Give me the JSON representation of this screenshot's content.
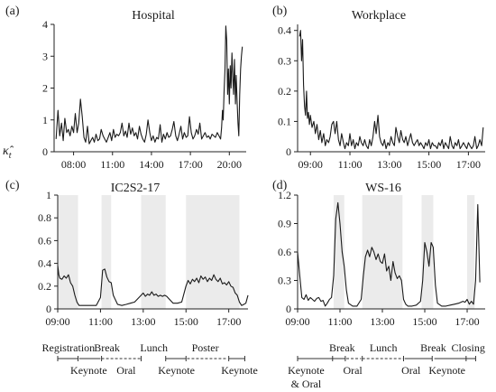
{
  "figure": {
    "ylabel": "κ̂",
    "ylabel_sub": "t"
  },
  "chart_data": [
    {
      "id": "a",
      "panel_label": "(a)",
      "title": "Hospital",
      "type": "line",
      "xlim": [
        6.5,
        21.3
      ],
      "ylim": [
        0,
        4
      ],
      "yticks": [
        0,
        1,
        2,
        3,
        4
      ],
      "xticks": [
        {
          "v": 8,
          "label": "08:00"
        },
        {
          "v": 11,
          "label": "11:00"
        },
        {
          "v": 14,
          "label": "14:00"
        },
        {
          "v": 17,
          "label": "17:00"
        },
        {
          "v": 20,
          "label": "20:00"
        }
      ],
      "shaded": [],
      "x": [
        6.65,
        6.8,
        6.93,
        7.07,
        7.2,
        7.33,
        7.47,
        7.6,
        7.73,
        7.87,
        8.0,
        8.13,
        8.27,
        8.4,
        8.53,
        8.67,
        8.8,
        8.93,
        9.07,
        9.2,
        9.33,
        9.47,
        9.6,
        9.73,
        9.87,
        10.0,
        10.13,
        10.27,
        10.4,
        10.53,
        10.67,
        10.8,
        10.93,
        11.07,
        11.2,
        11.33,
        11.47,
        11.6,
        11.73,
        11.87,
        12.0,
        12.13,
        12.27,
        12.4,
        12.53,
        12.67,
        12.8,
        12.93,
        13.07,
        13.2,
        13.33,
        13.47,
        13.6,
        13.73,
        13.87,
        14.0,
        14.13,
        14.27,
        14.4,
        14.53,
        14.67,
        14.8,
        14.93,
        15.07,
        15.2,
        15.33,
        15.47,
        15.6,
        15.73,
        15.87,
        16.0,
        16.13,
        16.27,
        16.4,
        16.53,
        16.67,
        16.8,
        16.93,
        17.07,
        17.2,
        17.33,
        17.47,
        17.6,
        17.73,
        17.87,
        18.0,
        18.13,
        18.27,
        18.4,
        18.53,
        18.67,
        18.8,
        18.93,
        19.07,
        19.2,
        19.33,
        19.4,
        19.47,
        19.53,
        19.6,
        19.67,
        19.73,
        19.8,
        19.87,
        19.93,
        20.0,
        20.07,
        20.13,
        20.2,
        20.27,
        20.33,
        20.4,
        20.47,
        20.53,
        20.6,
        20.67,
        20.73,
        20.8,
        20.87,
        20.93,
        21.0
      ],
      "y": [
        0.4,
        1.3,
        0.5,
        0.9,
        0.35,
        1.05,
        0.6,
        0.7,
        0.5,
        0.8,
        0.6,
        1.2,
        0.6,
        0.9,
        1.65,
        1.1,
        0.45,
        0.3,
        0.8,
        0.25,
        0.35,
        0.45,
        0.3,
        0.55,
        0.35,
        0.4,
        0.7,
        0.5,
        0.4,
        0.3,
        0.45,
        0.6,
        0.35,
        0.7,
        0.45,
        0.55,
        0.5,
        0.6,
        0.9,
        0.5,
        0.65,
        0.45,
        0.9,
        0.55,
        0.75,
        0.5,
        0.6,
        0.4,
        0.8,
        0.55,
        0.4,
        0.3,
        0.55,
        1.0,
        0.6,
        0.35,
        0.5,
        0.3,
        0.45,
        0.4,
        0.85,
        0.3,
        0.55,
        0.4,
        0.6,
        0.45,
        0.5,
        0.7,
        0.95,
        0.5,
        0.35,
        0.55,
        0.8,
        0.4,
        0.6,
        0.45,
        0.5,
        1.1,
        0.6,
        0.4,
        0.5,
        0.7,
        0.55,
        0.9,
        0.4,
        0.5,
        0.6,
        0.45,
        0.5,
        0.4,
        0.55,
        0.5,
        0.45,
        0.6,
        0.5,
        0.4,
        0.75,
        1.3,
        1.0,
        1.9,
        2.6,
        3.95,
        3.5,
        1.8,
        2.6,
        1.5,
        2.7,
        2.0,
        3.1,
        2.3,
        1.8,
        2.9,
        1.5,
        2.4,
        1.6,
        0.9,
        0.5,
        1.8,
        2.6,
        3.0,
        3.3
      ]
    },
    {
      "id": "b",
      "panel_label": "(b)",
      "title": "Workplace",
      "type": "line",
      "xlim": [
        8.35,
        17.85
      ],
      "ylim": [
        0,
        0.42
      ],
      "yticks": [
        0,
        0.1,
        0.2,
        0.3,
        0.4
      ],
      "xticks": [
        {
          "v": 9,
          "label": "09:00"
        },
        {
          "v": 11,
          "label": "11:00"
        },
        {
          "v": 13,
          "label": "13:00"
        },
        {
          "v": 15,
          "label": "15:00"
        },
        {
          "v": 17,
          "label": "17:00"
        }
      ],
      "shaded": [],
      "x": [
        8.45,
        8.5,
        8.55,
        8.6,
        8.65,
        8.7,
        8.75,
        8.8,
        8.85,
        8.9,
        8.95,
        9.0,
        9.08,
        9.17,
        9.25,
        9.33,
        9.42,
        9.5,
        9.58,
        9.67,
        9.75,
        9.83,
        9.92,
        10.0,
        10.08,
        10.17,
        10.25,
        10.33,
        10.42,
        10.5,
        10.58,
        10.67,
        10.75,
        10.83,
        10.92,
        11.0,
        11.08,
        11.17,
        11.25,
        11.33,
        11.42,
        11.5,
        11.58,
        11.67,
        11.75,
        11.83,
        11.92,
        12.0,
        12.08,
        12.17,
        12.25,
        12.33,
        12.42,
        12.5,
        12.58,
        12.67,
        12.75,
        12.83,
        12.92,
        13.0,
        13.08,
        13.17,
        13.25,
        13.33,
        13.42,
        13.5,
        13.58,
        13.67,
        13.75,
        13.83,
        13.92,
        14.0,
        14.08,
        14.17,
        14.25,
        14.33,
        14.42,
        14.5,
        14.58,
        14.67,
        14.75,
        14.83,
        14.92,
        15.0,
        15.08,
        15.17,
        15.25,
        15.33,
        15.42,
        15.5,
        15.58,
        15.67,
        15.75,
        15.83,
        15.92,
        16.0,
        16.08,
        16.17,
        16.25,
        16.33,
        16.42,
        16.5,
        16.58,
        16.67,
        16.75,
        16.83,
        16.92,
        17.0,
        17.08,
        17.17,
        17.25,
        17.33,
        17.42,
        17.5,
        17.58,
        17.67,
        17.75
      ],
      "y": [
        0.38,
        0.4,
        0.3,
        0.37,
        0.22,
        0.15,
        0.12,
        0.2,
        0.11,
        0.13,
        0.09,
        0.12,
        0.08,
        0.1,
        0.06,
        0.09,
        0.04,
        0.07,
        0.03,
        0.06,
        0.02,
        0.04,
        0.03,
        0.05,
        0.09,
        0.1,
        0.06,
        0.1,
        0.04,
        0.02,
        0.06,
        0.03,
        0.01,
        0.03,
        0.02,
        0.06,
        0.02,
        0.04,
        0.01,
        0.03,
        0.02,
        0.05,
        0.03,
        0.02,
        0.04,
        0.02,
        0.01,
        0.04,
        0.02,
        0.05,
        0.1,
        0.06,
        0.12,
        0.05,
        0.03,
        0.02,
        0.04,
        0.01,
        0.03,
        0.02,
        0.05,
        0.03,
        0.02,
        0.08,
        0.05,
        0.03,
        0.07,
        0.04,
        0.03,
        0.05,
        0.02,
        0.04,
        0.06,
        0.03,
        0.02,
        0.03,
        0.04,
        0.02,
        0.03,
        0.02,
        0.01,
        0.03,
        0.02,
        0.04,
        0.01,
        0.03,
        0.02,
        0.02,
        0.01,
        0.03,
        0.02,
        0.04,
        0.01,
        0.03,
        0.02,
        0.01,
        0.05,
        0.02,
        0.01,
        0.03,
        0.02,
        0.04,
        0.01,
        0.02,
        0.03,
        0.02,
        0.01,
        0.03,
        0.02,
        0.01,
        0.02,
        0.05,
        0.01,
        0.02,
        0.04,
        0.02,
        0.08
      ]
    },
    {
      "id": "c",
      "panel_label": "(c)",
      "title": "IC2S2-17",
      "type": "line",
      "xlim": [
        9.0,
        17.9
      ],
      "ylim": [
        0,
        1
      ],
      "yticks": [
        0,
        0.2,
        0.4,
        0.6,
        0.8,
        1.0
      ],
      "xticks": [
        {
          "v": 9,
          "label": "09:00"
        },
        {
          "v": 11,
          "label": "11:00"
        },
        {
          "v": 13,
          "label": "13:00"
        },
        {
          "v": 15,
          "label": "15:00"
        },
        {
          "v": 17,
          "label": "17:00"
        }
      ],
      "shaded": [
        [
          9.0,
          9.95
        ],
        [
          11.05,
          11.5
        ],
        [
          12.9,
          14.05
        ],
        [
          15.0,
          17.5
        ]
      ],
      "x": [
        9.0,
        9.05,
        9.1,
        9.2,
        9.3,
        9.4,
        9.5,
        9.6,
        9.7,
        9.8,
        9.9,
        10.0,
        10.2,
        10.4,
        10.6,
        10.8,
        11.0,
        11.1,
        11.2,
        11.3,
        11.4,
        11.5,
        11.6,
        11.8,
        12.0,
        12.2,
        12.4,
        12.6,
        12.8,
        12.9,
        13.0,
        13.1,
        13.2,
        13.3,
        13.4,
        13.5,
        13.6,
        13.7,
        13.8,
        13.9,
        14.0,
        14.1,
        14.2,
        14.4,
        14.6,
        14.8,
        15.0,
        15.1,
        15.2,
        15.3,
        15.4,
        15.5,
        15.6,
        15.7,
        15.8,
        15.9,
        16.0,
        16.1,
        16.2,
        16.3,
        16.4,
        16.5,
        16.6,
        16.7,
        16.8,
        16.9,
        17.0,
        17.1,
        17.2,
        17.3,
        17.4,
        17.5,
        17.6,
        17.7,
        17.8,
        17.9
      ],
      "y": [
        0.38,
        0.3,
        0.27,
        0.26,
        0.29,
        0.27,
        0.3,
        0.23,
        0.2,
        0.12,
        0.06,
        0.03,
        0.03,
        0.03,
        0.03,
        0.03,
        0.1,
        0.34,
        0.35,
        0.28,
        0.24,
        0.23,
        0.12,
        0.04,
        0.03,
        0.04,
        0.05,
        0.06,
        0.1,
        0.12,
        0.14,
        0.11,
        0.13,
        0.12,
        0.15,
        0.12,
        0.13,
        0.11,
        0.12,
        0.11,
        0.12,
        0.11,
        0.09,
        0.05,
        0.05,
        0.06,
        0.2,
        0.25,
        0.22,
        0.26,
        0.24,
        0.27,
        0.23,
        0.29,
        0.26,
        0.28,
        0.24,
        0.27,
        0.25,
        0.3,
        0.26,
        0.24,
        0.27,
        0.22,
        0.23,
        0.21,
        0.24,
        0.2,
        0.19,
        0.14,
        0.12,
        0.06,
        0.03,
        0.04,
        0.05,
        0.12
      ]
    },
    {
      "id": "d",
      "panel_label": "(d)",
      "title": "WS-16",
      "type": "line",
      "xlim": [
        9.0,
        17.85
      ],
      "ylim": [
        0,
        1.2
      ],
      "yticks": [
        0,
        0.3,
        0.6,
        0.9,
        1.2
      ],
      "xticks": [
        {
          "v": 9,
          "label": "09:00"
        },
        {
          "v": 11,
          "label": "11:00"
        },
        {
          "v": 13,
          "label": "13:00"
        },
        {
          "v": 15,
          "label": "15:00"
        },
        {
          "v": 17,
          "label": "17:00"
        }
      ],
      "shaded": [
        [
          10.7,
          11.2
        ],
        [
          12.05,
          13.95
        ],
        [
          14.85,
          15.4
        ],
        [
          17.0,
          17.35
        ]
      ],
      "x": [
        9.0,
        9.1,
        9.2,
        9.3,
        9.4,
        9.5,
        9.6,
        9.7,
        9.8,
        9.9,
        10.0,
        10.1,
        10.2,
        10.3,
        10.4,
        10.5,
        10.6,
        10.7,
        10.8,
        10.9,
        11.0,
        11.1,
        11.2,
        11.3,
        11.4,
        11.6,
        11.8,
        12.0,
        12.1,
        12.2,
        12.3,
        12.4,
        12.5,
        12.6,
        12.7,
        12.8,
        12.9,
        13.0,
        13.1,
        13.2,
        13.3,
        13.4,
        13.5,
        13.6,
        13.7,
        13.8,
        13.9,
        14.0,
        14.1,
        14.2,
        14.4,
        14.6,
        14.8,
        14.9,
        15.0,
        15.1,
        15.2,
        15.3,
        15.4,
        15.5,
        15.6,
        15.8,
        16.0,
        16.2,
        16.4,
        16.6,
        16.8,
        16.9,
        17.0,
        17.1,
        17.2,
        17.3,
        17.4,
        17.5,
        17.6
      ],
      "y": [
        0.6,
        0.35,
        0.12,
        0.1,
        0.15,
        0.09,
        0.12,
        0.1,
        0.08,
        0.11,
        0.12,
        0.08,
        0.09,
        0.03,
        0.06,
        0.1,
        0.12,
        0.35,
        0.95,
        1.12,
        0.9,
        0.6,
        0.45,
        0.2,
        0.06,
        0.03,
        0.03,
        0.1,
        0.35,
        0.55,
        0.62,
        0.55,
        0.65,
        0.6,
        0.52,
        0.58,
        0.5,
        0.48,
        0.58,
        0.4,
        0.45,
        0.3,
        0.5,
        0.38,
        0.32,
        0.35,
        0.3,
        0.1,
        0.05,
        0.03,
        0.03,
        0.04,
        0.08,
        0.3,
        0.7,
        0.6,
        0.45,
        0.7,
        0.65,
        0.25,
        0.06,
        0.03,
        0.03,
        0.04,
        0.05,
        0.06,
        0.08,
        0.07,
        0.1,
        0.05,
        0.08,
        0.05,
        0.3,
        1.1,
        0.28
      ]
    }
  ],
  "schedules": [
    {
      "id": "c",
      "upper": [
        {
          "label": "Registration",
          "v": 9.5
        },
        {
          "label": "Break",
          "v": 11.3
        },
        {
          "label": "Lunch",
          "v": 13.5
        },
        {
          "label": "Poster",
          "v": 15.9
        }
      ],
      "lower": [
        {
          "label": "Keynote",
          "v": 10.45
        },
        {
          "label": "Oral",
          "v": 12.2
        },
        {
          "label": "Keynote",
          "v": 14.55
        },
        {
          "label": "Keynote",
          "v": 17.5
        }
      ],
      "solid": [
        [
          9.0,
          9.95
        ],
        [
          10.0,
          11.0
        ],
        [
          14.05,
          15.0
        ],
        [
          17.0,
          17.75
        ]
      ],
      "dashed": [
        [
          11.05,
          12.9
        ],
        [
          15.05,
          16.95
        ]
      ],
      "ticks": [
        9.0,
        9.95,
        11.05,
        12.9,
        14.05,
        15.0,
        17.0,
        17.75
      ]
    },
    {
      "id": "d",
      "upper": [
        {
          "label": "Break",
          "v": 11.1
        },
        {
          "label": "Lunch",
          "v": 13.05
        },
        {
          "label": "Break",
          "v": 15.4
        },
        {
          "label": "Closing",
          "v": 17.05
        }
      ],
      "lower": [
        {
          "label": "Keynote",
          "v": 9.4
        },
        {
          "label": "& Oral",
          "v": 9.4,
          "line": 2
        },
        {
          "label": "Oral",
          "v": 11.6
        },
        {
          "label": "Oral",
          "v": 14.35
        },
        {
          "label": "Keynote",
          "v": 16.05
        }
      ],
      "solid": [
        [
          9.0,
          10.65
        ],
        [
          10.65,
          11.25
        ],
        [
          14.05,
          15.35
        ],
        [
          15.45,
          16.95
        ],
        [
          16.95,
          17.4
        ]
      ],
      "dashed": [
        [
          11.3,
          12.0
        ],
        [
          12.05,
          14.0
        ]
      ],
      "ticks": [
        9.0,
        10.65,
        11.25,
        12.05,
        14.0,
        15.35,
        16.95,
        17.4
      ]
    }
  ]
}
